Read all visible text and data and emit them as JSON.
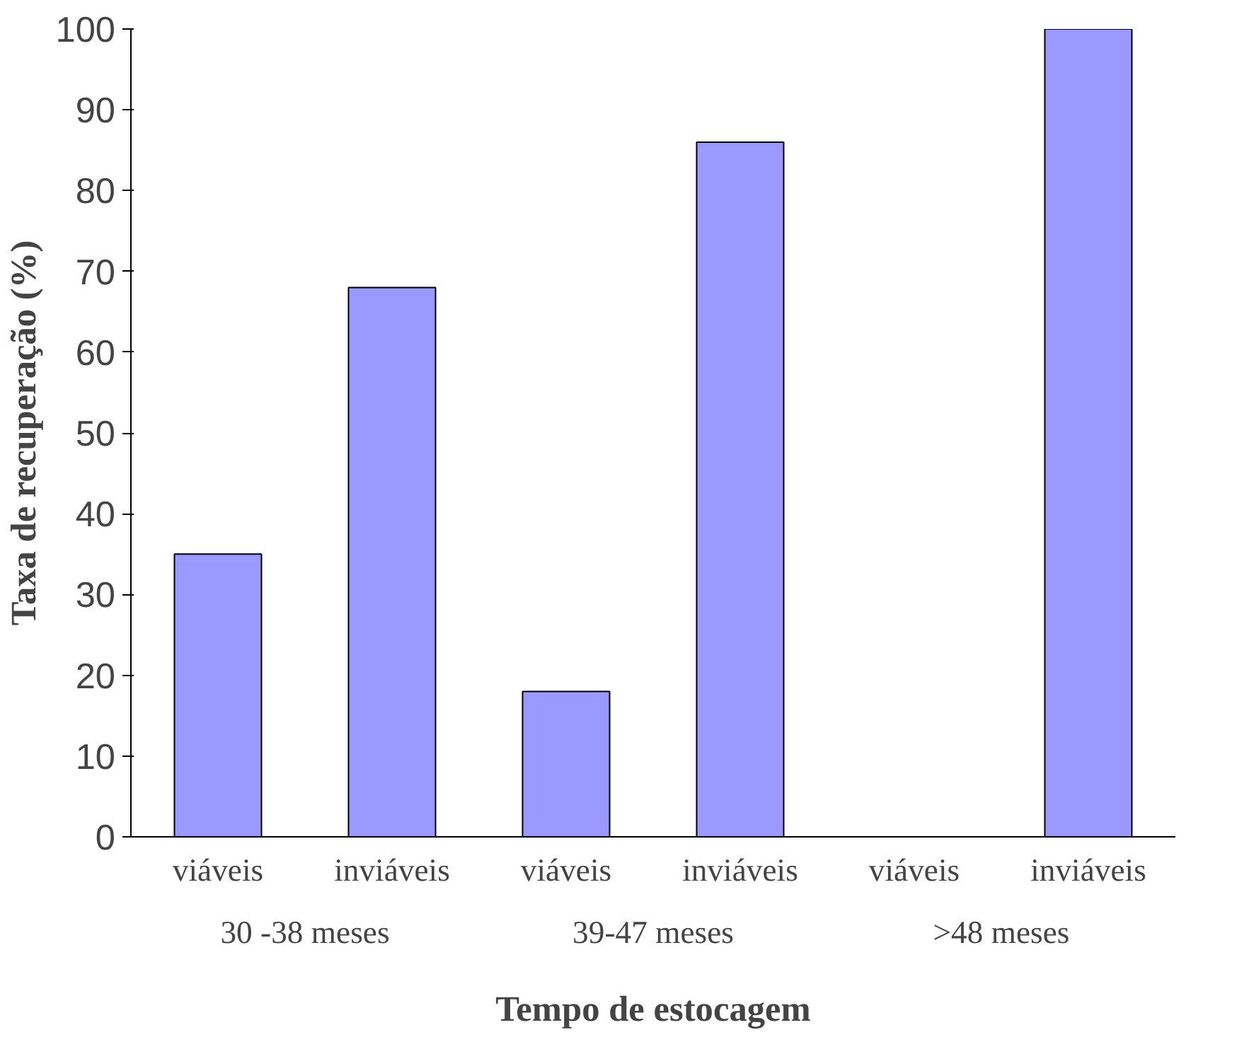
{
  "chart_data": {
    "type": "bar",
    "xlabel": "Tempo de estocagem",
    "ylabel": "Taxa de recuperação (%)",
    "categories": [
      "viáveis",
      "inviáveis",
      "viáveis",
      "inviáveis",
      "viáveis",
      "inviáveis"
    ],
    "values": [
      35,
      68,
      18,
      86,
      0,
      100
    ],
    "color": "#9999ff",
    "annotations": [
      "30 -38 meses",
      "39-47 meses",
      ">48 meses"
    ],
    "ylim": [
      0,
      100
    ],
    "yticks": [
      0,
      10,
      20,
      30,
      40,
      50,
      60,
      70,
      80,
      90,
      100
    ],
    "grid": false
  }
}
